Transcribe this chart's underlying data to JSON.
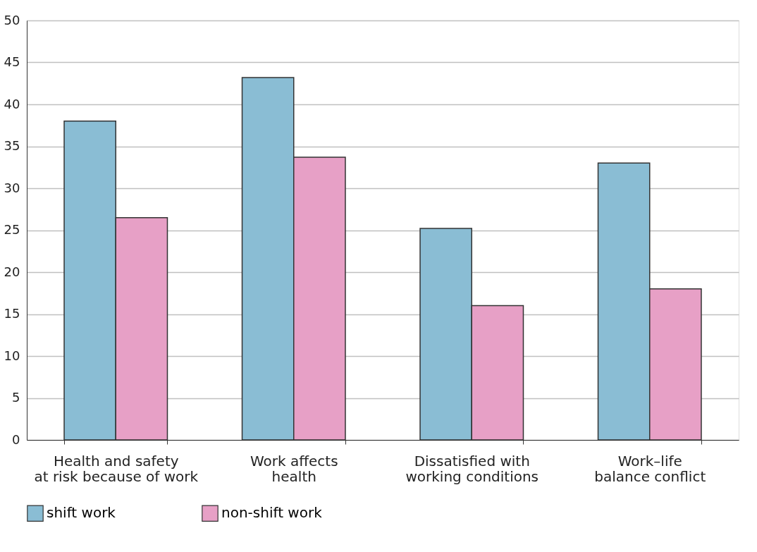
{
  "chart_data": {
    "type": "bar",
    "categories": [
      "Health and safety\nat risk because of work",
      "Work affects\nhealth",
      "Dissatisfied with\nworking conditions",
      "Work–life\nbalance conflict"
    ],
    "series": [
      {
        "name": "shift work",
        "color": "#8abdd4",
        "values": [
          38,
          43.2,
          25.2,
          33
        ]
      },
      {
        "name": "non-shift work",
        "color": "#e7a0c6",
        "values": [
          26.5,
          33.7,
          16,
          18
        ]
      }
    ],
    "ylim": [
      0,
      50
    ],
    "yticks": [
      0,
      5,
      10,
      15,
      20,
      25,
      30,
      35,
      40,
      45,
      50
    ],
    "grid": "y",
    "legend": "bottom"
  }
}
